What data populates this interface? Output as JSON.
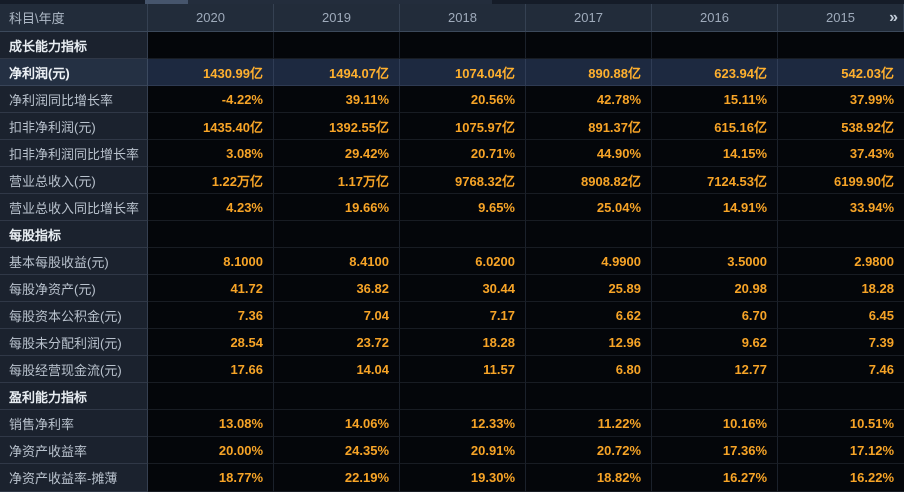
{
  "table": {
    "corner_header": "科目\\年度",
    "year_headers": [
      "2020",
      "2019",
      "2018",
      "2017",
      "2016",
      "2015"
    ],
    "more_years_icon": "»",
    "colors": {
      "value_orange": "#f7a427",
      "header_bg": "#222c3a",
      "label_column_bg": "#1b222e",
      "data_cell_bg": "#04060a",
      "highlight_row_bg": "#1d2940",
      "tab_active_segment": "#46556c"
    },
    "rows": [
      {
        "type": "section",
        "label": "成长能力指标",
        "values": [
          "",
          "",
          "",
          "",
          "",
          ""
        ]
      },
      {
        "type": "highlight",
        "label": "净利润(元)",
        "values": [
          "1430.99亿",
          "1494.07亿",
          "1074.04亿",
          "890.88亿",
          "623.94亿",
          "542.03亿"
        ]
      },
      {
        "type": "data",
        "label": "净利润同比增长率",
        "values": [
          "-4.22%",
          "39.11%",
          "20.56%",
          "42.78%",
          "15.11%",
          "37.99%"
        ]
      },
      {
        "type": "data",
        "label": "扣非净利润(元)",
        "values": [
          "1435.40亿",
          "1392.55亿",
          "1075.97亿",
          "891.37亿",
          "615.16亿",
          "538.92亿"
        ]
      },
      {
        "type": "data",
        "label": "扣非净利润同比增长率",
        "values": [
          "3.08%",
          "29.42%",
          "20.71%",
          "44.90%",
          "14.15%",
          "37.43%"
        ]
      },
      {
        "type": "data",
        "label": "营业总收入(元)",
        "values": [
          "1.22万亿",
          "1.17万亿",
          "9768.32亿",
          "8908.82亿",
          "7124.53亿",
          "6199.90亿"
        ]
      },
      {
        "type": "data",
        "label": "营业总收入同比增长率",
        "values": [
          "4.23%",
          "19.66%",
          "9.65%",
          "25.04%",
          "14.91%",
          "33.94%"
        ]
      },
      {
        "type": "section",
        "label": "每股指标",
        "values": [
          "",
          "",
          "",
          "",
          "",
          ""
        ]
      },
      {
        "type": "data",
        "label": "基本每股收益(元)",
        "values": [
          "8.1000",
          "8.4100",
          "6.0200",
          "4.9900",
          "3.5000",
          "2.9800"
        ]
      },
      {
        "type": "data",
        "label": "每股净资产(元)",
        "values": [
          "41.72",
          "36.82",
          "30.44",
          "25.89",
          "20.98",
          "18.28"
        ]
      },
      {
        "type": "data",
        "label": "每股资本公积金(元)",
        "values": [
          "7.36",
          "7.04",
          "7.17",
          "6.62",
          "6.70",
          "6.45"
        ]
      },
      {
        "type": "data",
        "label": "每股未分配利润(元)",
        "values": [
          "28.54",
          "23.72",
          "18.28",
          "12.96",
          "9.62",
          "7.39"
        ]
      },
      {
        "type": "data",
        "label": "每股经营现金流(元)",
        "values": [
          "17.66",
          "14.04",
          "11.57",
          "6.80",
          "12.77",
          "7.46"
        ]
      },
      {
        "type": "section",
        "label": "盈利能力指标",
        "values": [
          "",
          "",
          "",
          "",
          "",
          ""
        ]
      },
      {
        "type": "data",
        "label": "销售净利率",
        "values": [
          "13.08%",
          "14.06%",
          "12.33%",
          "11.22%",
          "10.16%",
          "10.51%"
        ]
      },
      {
        "type": "data",
        "label": "净资产收益率",
        "values": [
          "20.00%",
          "24.35%",
          "20.91%",
          "20.72%",
          "17.36%",
          "17.12%"
        ]
      },
      {
        "type": "data",
        "label": "净资产收益率-摊薄",
        "values": [
          "18.77%",
          "22.19%",
          "19.30%",
          "18.82%",
          "16.27%",
          "16.22%"
        ]
      }
    ]
  }
}
